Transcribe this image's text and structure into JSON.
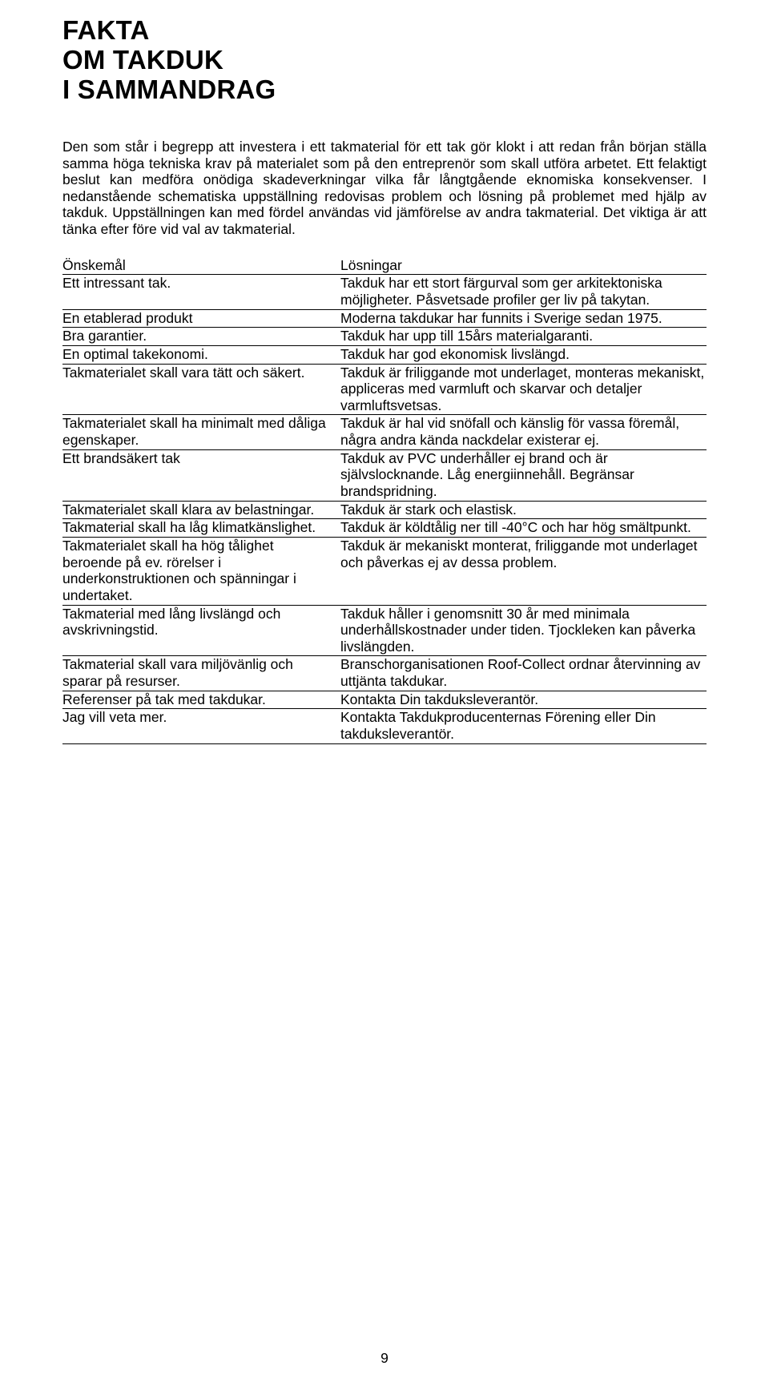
{
  "title_lines": [
    "FAKTA",
    "OM TAKDUK",
    "I SAMMANDRAG"
  ],
  "intro": "Den som står i begrepp att investera i ett takmaterial för ett tak gör klokt i att redan från början ställa samma höga tekniska krav på materialet som på den entreprenör som skall utföra arbetet. Ett felaktigt beslut kan medföra onödiga skadeverkningar vilka får långtgående eknomiska konsekvenser. I nedanstående schematiska uppställning redovisas problem och lösning på problemet med hjälp av takduk. Uppställningen kan med fördel användas vid jämförelse av andra takmaterial. Det viktiga är att tänka efter före vid val av takmaterial.",
  "table_header": {
    "left": "Önskemål",
    "right": "Lösningar"
  },
  "rows": [
    {
      "left": "Ett intressant tak.",
      "right": "Takduk har ett stort färgurval som ger arkitektoniska möjligheter. Påsvetsade profiler ger liv på takytan."
    },
    {
      "left": "En etablerad produkt",
      "right": "Moderna takdukar har funnits i Sverige sedan 1975."
    },
    {
      "left": "Bra garantier.",
      "right": "Takduk har upp till 15års materialgaranti."
    },
    {
      "left": "En optimal takekonomi.",
      "right": "Takduk har god ekonomisk livslängd."
    },
    {
      "left": "Takmaterialet skall vara tätt och säkert.",
      "right": "Takduk är friliggande mot underlaget, monteras mekaniskt, appliceras med varmluft och skarvar och detaljer varmluftsvetsas."
    },
    {
      "left": "Takmaterialet skall ha minimalt med dåliga egenskaper.",
      "right": "Takduk är hal vid snöfall och känslig för vassa föremål, några andra kända nackdelar existerar ej."
    },
    {
      "left": "Ett brandsäkert tak",
      "right": "Takduk av PVC underhåller ej brand och är självslocknande. Låg energiinnehåll. Begränsar brandspridning."
    },
    {
      "left": "Takmaterialet skall klara av belastningar.",
      "right": "Takduk är stark och elastisk."
    },
    {
      "left": "Takmaterial skall ha låg klimatkänslighet.",
      "right": "Takduk är köldtålig ner till -40°C och har hög smältpunkt."
    },
    {
      "left": "Takmaterialet skall ha hög tålighet beroende på ev. rörelser i underkonstruktionen och spänningar i undertaket.",
      "right": "Takduk är mekaniskt monterat, friliggande mot underlaget och påverkas ej av dessa problem."
    },
    {
      "left": "Takmaterial med lång livslängd och avskrivningstid.",
      "right": "Takduk håller i genomsnitt 30 år med minimala underhållskostnader under tiden. Tjockleken kan påverka livslängden."
    },
    {
      "left": "Takmaterial skall vara miljövänlig och sparar på resurser.",
      "right": "Branschorganisationen Roof-Collect ordnar återvinning av uttjänta takdukar."
    },
    {
      "left": "Referenser på tak med takdukar.",
      "right": "Kontakta Din takduksleverantör."
    },
    {
      "left": "Jag vill veta mer.",
      "right": "Kontakta Takdukproducenternas Förening eller Din takduksleverantör."
    }
  ],
  "page_number": "9"
}
